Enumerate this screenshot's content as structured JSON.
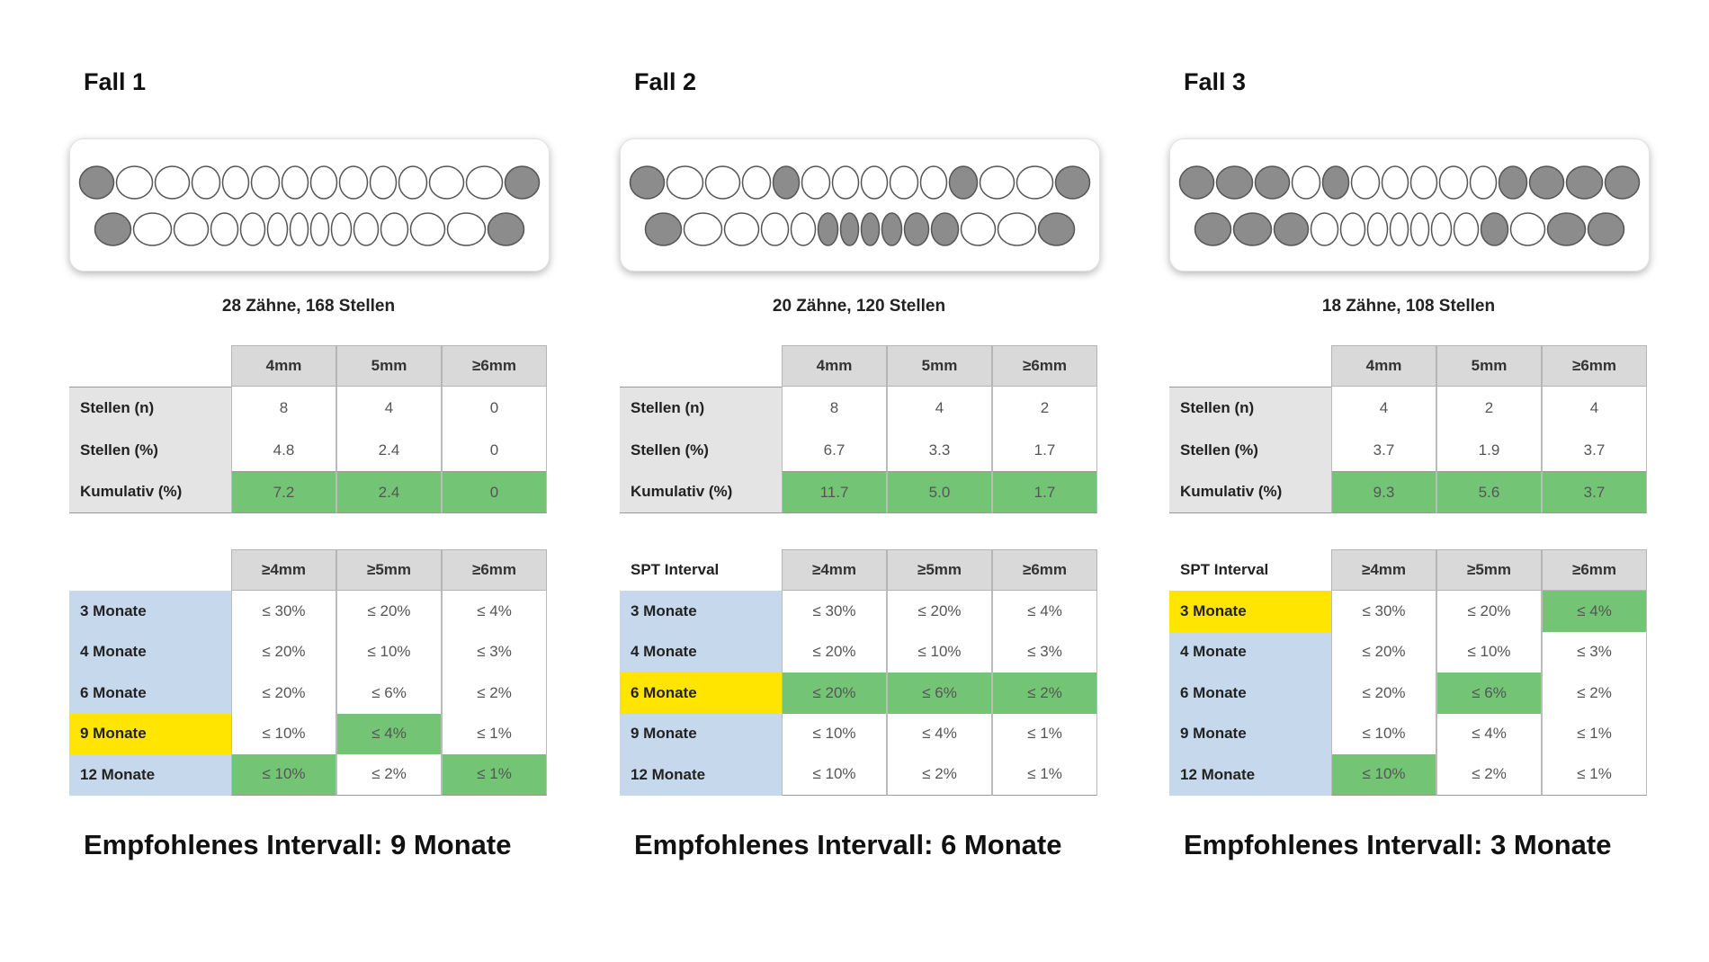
{
  "cases": [
    {
      "title": "Fall 1",
      "summary": "28 Zähne, 168 Stellen",
      "stats": {
        "header": [
          "4mm",
          "5mm",
          "≥6mm"
        ],
        "highlight_row": 2,
        "rows": [
          {
            "label": "Stellen (n)",
            "values": [
              "8",
              "4",
              "0"
            ]
          },
          {
            "label": "Stellen (%)",
            "values": [
              "4.8",
              "2.4",
              "0"
            ]
          },
          {
            "label": "Kumulativ (%)",
            "values": [
              "7.2",
              "2.4",
              "0"
            ]
          }
        ]
      },
      "intervals": {
        "header": [
          "≥4mm",
          "≥5mm",
          "≥6mm"
        ],
        "selected_row": 3,
        "highlight_cells": [
          [
            3,
            1
          ],
          [
            4,
            0
          ],
          [
            4,
            2
          ]
        ],
        "rows": [
          {
            "label": "3 Monate",
            "values": [
              "≤ 30%",
              "≤ 20%",
              "≤ 4%"
            ]
          },
          {
            "label": "4 Monate",
            "values": [
              "≤ 20%",
              "≤ 10%",
              "≤ 3%"
            ]
          },
          {
            "label": "6 Monate",
            "values": [
              "≤ 20%",
              "≤ 6%",
              "≤ 2%"
            ]
          },
          {
            "label": "9 Monate",
            "values": [
              "≤ 10%",
              "≤ 4%",
              "≤ 1%"
            ]
          },
          {
            "label": "12 Monate",
            "values": [
              "≤ 10%",
              "≤ 2%",
              "≤ 1%"
            ]
          }
        ]
      },
      "recommendation": "Empfohlenes Intervall: 9 Monate"
    },
    {
      "title": "Fall 2",
      "summary": "20 Zähne, 120 Stellen",
      "stats": {
        "header": [
          "4mm",
          "5mm",
          "≥6mm"
        ],
        "highlight_row": 2,
        "rows": [
          {
            "label": "Stellen (n)",
            "values": [
              "8",
              "4",
              "2"
            ]
          },
          {
            "label": "Stellen (%)",
            "values": [
              "6.7",
              "3.3",
              "1.7"
            ]
          },
          {
            "label": "Kumulativ (%)",
            "values": [
              "11.7",
              "5.0",
              "1.7"
            ]
          }
        ]
      },
      "intervals": {
        "corner": "SPT Interval",
        "header": [
          "≥4mm",
          "≥5mm",
          "≥6mm"
        ],
        "selected_row": 2,
        "highlight_cells": [
          [
            2,
            0
          ],
          [
            2,
            1
          ],
          [
            2,
            2
          ]
        ],
        "rows": [
          {
            "label": "3 Monate",
            "values": [
              "≤ 30%",
              "≤ 20%",
              "≤ 4%"
            ]
          },
          {
            "label": "4 Monate",
            "values": [
              "≤ 20%",
              "≤ 10%",
              "≤ 3%"
            ]
          },
          {
            "label": "6 Monate",
            "values": [
              "≤ 20%",
              "≤ 6%",
              "≤ 2%"
            ]
          },
          {
            "label": "9 Monate",
            "values": [
              "≤ 10%",
              "≤ 4%",
              "≤ 1%"
            ]
          },
          {
            "label": "12 Monate",
            "values": [
              "≤ 10%",
              "≤ 2%",
              "≤ 1%"
            ]
          }
        ]
      },
      "recommendation": "Empfohlenes Intervall: 6 Monate"
    },
    {
      "title": "Fall 3",
      "summary": "18 Zähne, 108 Stellen",
      "stats": {
        "header": [
          "4mm",
          "5mm",
          "≥6mm"
        ],
        "highlight_row": 2,
        "rows": [
          {
            "label": "Stellen (n)",
            "values": [
              "4",
              "2",
              "4"
            ]
          },
          {
            "label": "Stellen (%)",
            "values": [
              "3.7",
              "1.9",
              "3.7"
            ]
          },
          {
            "label": "Kumulativ (%)",
            "values": [
              "9.3",
              "5.6",
              "3.7"
            ]
          }
        ]
      },
      "intervals": {
        "corner": "SPT Interval",
        "header": [
          "≥4mm",
          "≥5mm",
          "≥6mm"
        ],
        "selected_row": 0,
        "highlight_cells": [
          [
            0,
            2
          ],
          [
            2,
            1
          ],
          [
            4,
            0
          ]
        ],
        "rows": [
          {
            "label": "3 Monate",
            "values": [
              "≤ 30%",
              "≤ 20%",
              "≤ 4%"
            ]
          },
          {
            "label": "4 Monate",
            "values": [
              "≤ 20%",
              "≤ 10%",
              "≤ 3%"
            ]
          },
          {
            "label": "6 Monate",
            "values": [
              "≤ 20%",
              "≤ 6%",
              "≤ 2%"
            ]
          },
          {
            "label": "9 Monate",
            "values": [
              "≤ 10%",
              "≤ 4%",
              "≤ 1%"
            ]
          },
          {
            "label": "12 Monate",
            "values": [
              "≤ 10%",
              "≤ 2%",
              "≤ 1%"
            ]
          }
        ]
      },
      "recommendation": "Empfohlenes Intervall: 3 Monate"
    }
  ]
}
